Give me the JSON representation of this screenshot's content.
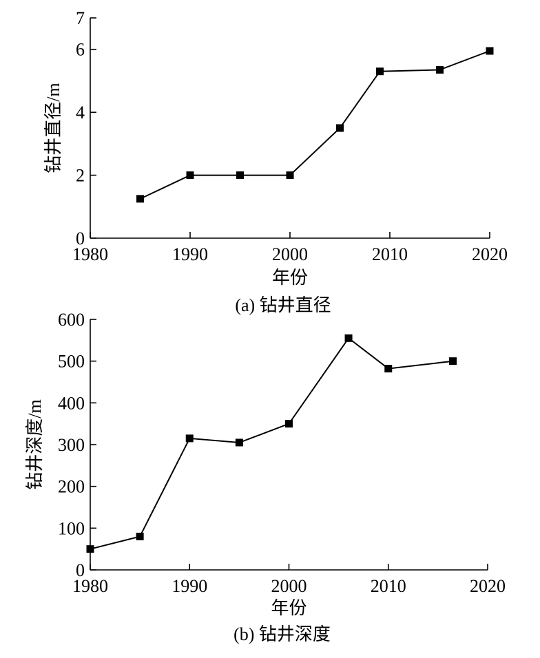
{
  "chart_data": [
    {
      "type": "line",
      "caption": "(a) 钻井直径",
      "xlabel": "年份",
      "ylabel": "钻井直径/m",
      "xlim": [
        1980,
        2020
      ],
      "ylim": [
        0,
        7
      ],
      "xticks": [
        1980,
        1990,
        2000,
        2010,
        2020
      ],
      "yticks": [
        0,
        2,
        4,
        6,
        7
      ],
      "series": [
        {
          "x": [
            1985,
            1990,
            1995,
            2000,
            2005,
            2009,
            2015,
            2020
          ],
          "y": [
            1.25,
            2.0,
            2.0,
            2.0,
            3.5,
            5.3,
            5.35,
            5.95
          ]
        }
      ]
    },
    {
      "type": "line",
      "caption": "(b) 钻井深度",
      "xlabel": "年份",
      "ylabel": "钻井深度/m",
      "xlim": [
        1980,
        2020
      ],
      "ylim": [
        0,
        600
      ],
      "xticks": [
        1980,
        1990,
        2000,
        2010,
        2020
      ],
      "yticks": [
        0,
        100,
        200,
        300,
        400,
        500,
        600
      ],
      "series": [
        {
          "x": [
            1980,
            1985,
            1990,
            1995,
            2000,
            2006,
            2010,
            2016.5
          ],
          "y": [
            50,
            80,
            315,
            305,
            350,
            555,
            482,
            500
          ]
        }
      ]
    }
  ]
}
